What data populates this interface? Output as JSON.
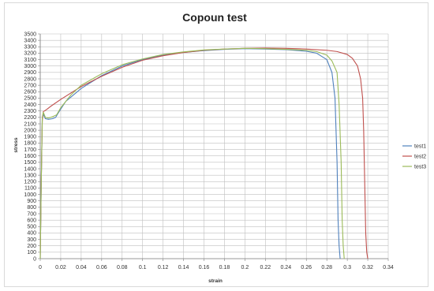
{
  "chart_data": {
    "type": "line",
    "title": "Copoun test",
    "xlabel": "strain",
    "ylabel": "stress",
    "xlim": [
      0,
      0.34
    ],
    "ylim": [
      0,
      3500
    ],
    "x_ticks": [
      0,
      0.02,
      0.04,
      0.06,
      0.08,
      0.1,
      0.12,
      0.14,
      0.16,
      0.18,
      0.2,
      0.22,
      0.24,
      0.26,
      0.28,
      0.3,
      0.32,
      0.34
    ],
    "x_tick_labels": [
      "0",
      "0.02",
      "0.04",
      "0.06",
      "0.08",
      "0.1",
      "0.12",
      "0.14",
      "0.16",
      "0.18",
      "0.2",
      "0.22",
      "0.24",
      "0.26",
      "0.28",
      "0.3",
      "0.32",
      "0.34"
    ],
    "y_ticks": [
      0,
      100,
      200,
      300,
      400,
      500,
      600,
      700,
      800,
      900,
      1000,
      1100,
      1200,
      1300,
      1400,
      1500,
      1600,
      1700,
      1800,
      1900,
      2000,
      2100,
      2200,
      2300,
      2400,
      2500,
      2600,
      2700,
      2800,
      2900,
      3000,
      3100,
      3200,
      3300,
      3400,
      3500
    ],
    "grid": true,
    "legend_position": "right",
    "series": [
      {
        "name": "test1",
        "color": "#4f81bd",
        "points": [
          [
            0,
            0
          ],
          [
            0.001,
            1200
          ],
          [
            0.002,
            2200
          ],
          [
            0.003,
            2250
          ],
          [
            0.005,
            2180
          ],
          [
            0.008,
            2170
          ],
          [
            0.012,
            2180
          ],
          [
            0.015,
            2200
          ],
          [
            0.018,
            2280
          ],
          [
            0.025,
            2450
          ],
          [
            0.04,
            2650
          ],
          [
            0.06,
            2850
          ],
          [
            0.08,
            3000
          ],
          [
            0.1,
            3100
          ],
          [
            0.12,
            3170
          ],
          [
            0.14,
            3210
          ],
          [
            0.16,
            3240
          ],
          [
            0.18,
            3260
          ],
          [
            0.2,
            3270
          ],
          [
            0.22,
            3265
          ],
          [
            0.24,
            3255
          ],
          [
            0.26,
            3230
          ],
          [
            0.27,
            3200
          ],
          [
            0.28,
            3100
          ],
          [
            0.285,
            2900
          ],
          [
            0.288,
            2500
          ],
          [
            0.29,
            1500
          ],
          [
            0.291,
            600
          ],
          [
            0.292,
            200
          ],
          [
            0.293,
            0
          ]
        ]
      },
      {
        "name": "test2",
        "color": "#c0504d",
        "points": [
          [
            0,
            0
          ],
          [
            0.001,
            1200
          ],
          [
            0.002,
            2150
          ],
          [
            0.003,
            2290
          ],
          [
            0.006,
            2320
          ],
          [
            0.01,
            2370
          ],
          [
            0.02,
            2480
          ],
          [
            0.04,
            2680
          ],
          [
            0.06,
            2840
          ],
          [
            0.08,
            2980
          ],
          [
            0.1,
            3090
          ],
          [
            0.12,
            3160
          ],
          [
            0.14,
            3210
          ],
          [
            0.16,
            3245
          ],
          [
            0.18,
            3265
          ],
          [
            0.2,
            3275
          ],
          [
            0.22,
            3280
          ],
          [
            0.24,
            3275
          ],
          [
            0.26,
            3265
          ],
          [
            0.28,
            3245
          ],
          [
            0.29,
            3225
          ],
          [
            0.3,
            3180
          ],
          [
            0.305,
            3120
          ],
          [
            0.31,
            3000
          ],
          [
            0.313,
            2800
          ],
          [
            0.315,
            2500
          ],
          [
            0.316,
            2000
          ],
          [
            0.317,
            1200
          ],
          [
            0.318,
            400
          ],
          [
            0.319,
            100
          ],
          [
            0.32,
            0
          ]
        ]
      },
      {
        "name": "test3",
        "color": "#9bbb59",
        "points": [
          [
            0,
            0
          ],
          [
            0.001,
            1200
          ],
          [
            0.002,
            2200
          ],
          [
            0.003,
            2280
          ],
          [
            0.005,
            2200
          ],
          [
            0.008,
            2190
          ],
          [
            0.012,
            2210
          ],
          [
            0.016,
            2240
          ],
          [
            0.02,
            2350
          ],
          [
            0.03,
            2550
          ],
          [
            0.04,
            2700
          ],
          [
            0.06,
            2880
          ],
          [
            0.08,
            3020
          ],
          [
            0.1,
            3110
          ],
          [
            0.12,
            3180
          ],
          [
            0.14,
            3220
          ],
          [
            0.16,
            3250
          ],
          [
            0.18,
            3265
          ],
          [
            0.2,
            3275
          ],
          [
            0.22,
            3270
          ],
          [
            0.24,
            3260
          ],
          [
            0.26,
            3245
          ],
          [
            0.27,
            3225
          ],
          [
            0.28,
            3170
          ],
          [
            0.285,
            3080
          ],
          [
            0.29,
            2900
          ],
          [
            0.292,
            2400
          ],
          [
            0.294,
            1500
          ],
          [
            0.295,
            600
          ],
          [
            0.296,
            200
          ],
          [
            0.297,
            0
          ]
        ]
      }
    ]
  }
}
